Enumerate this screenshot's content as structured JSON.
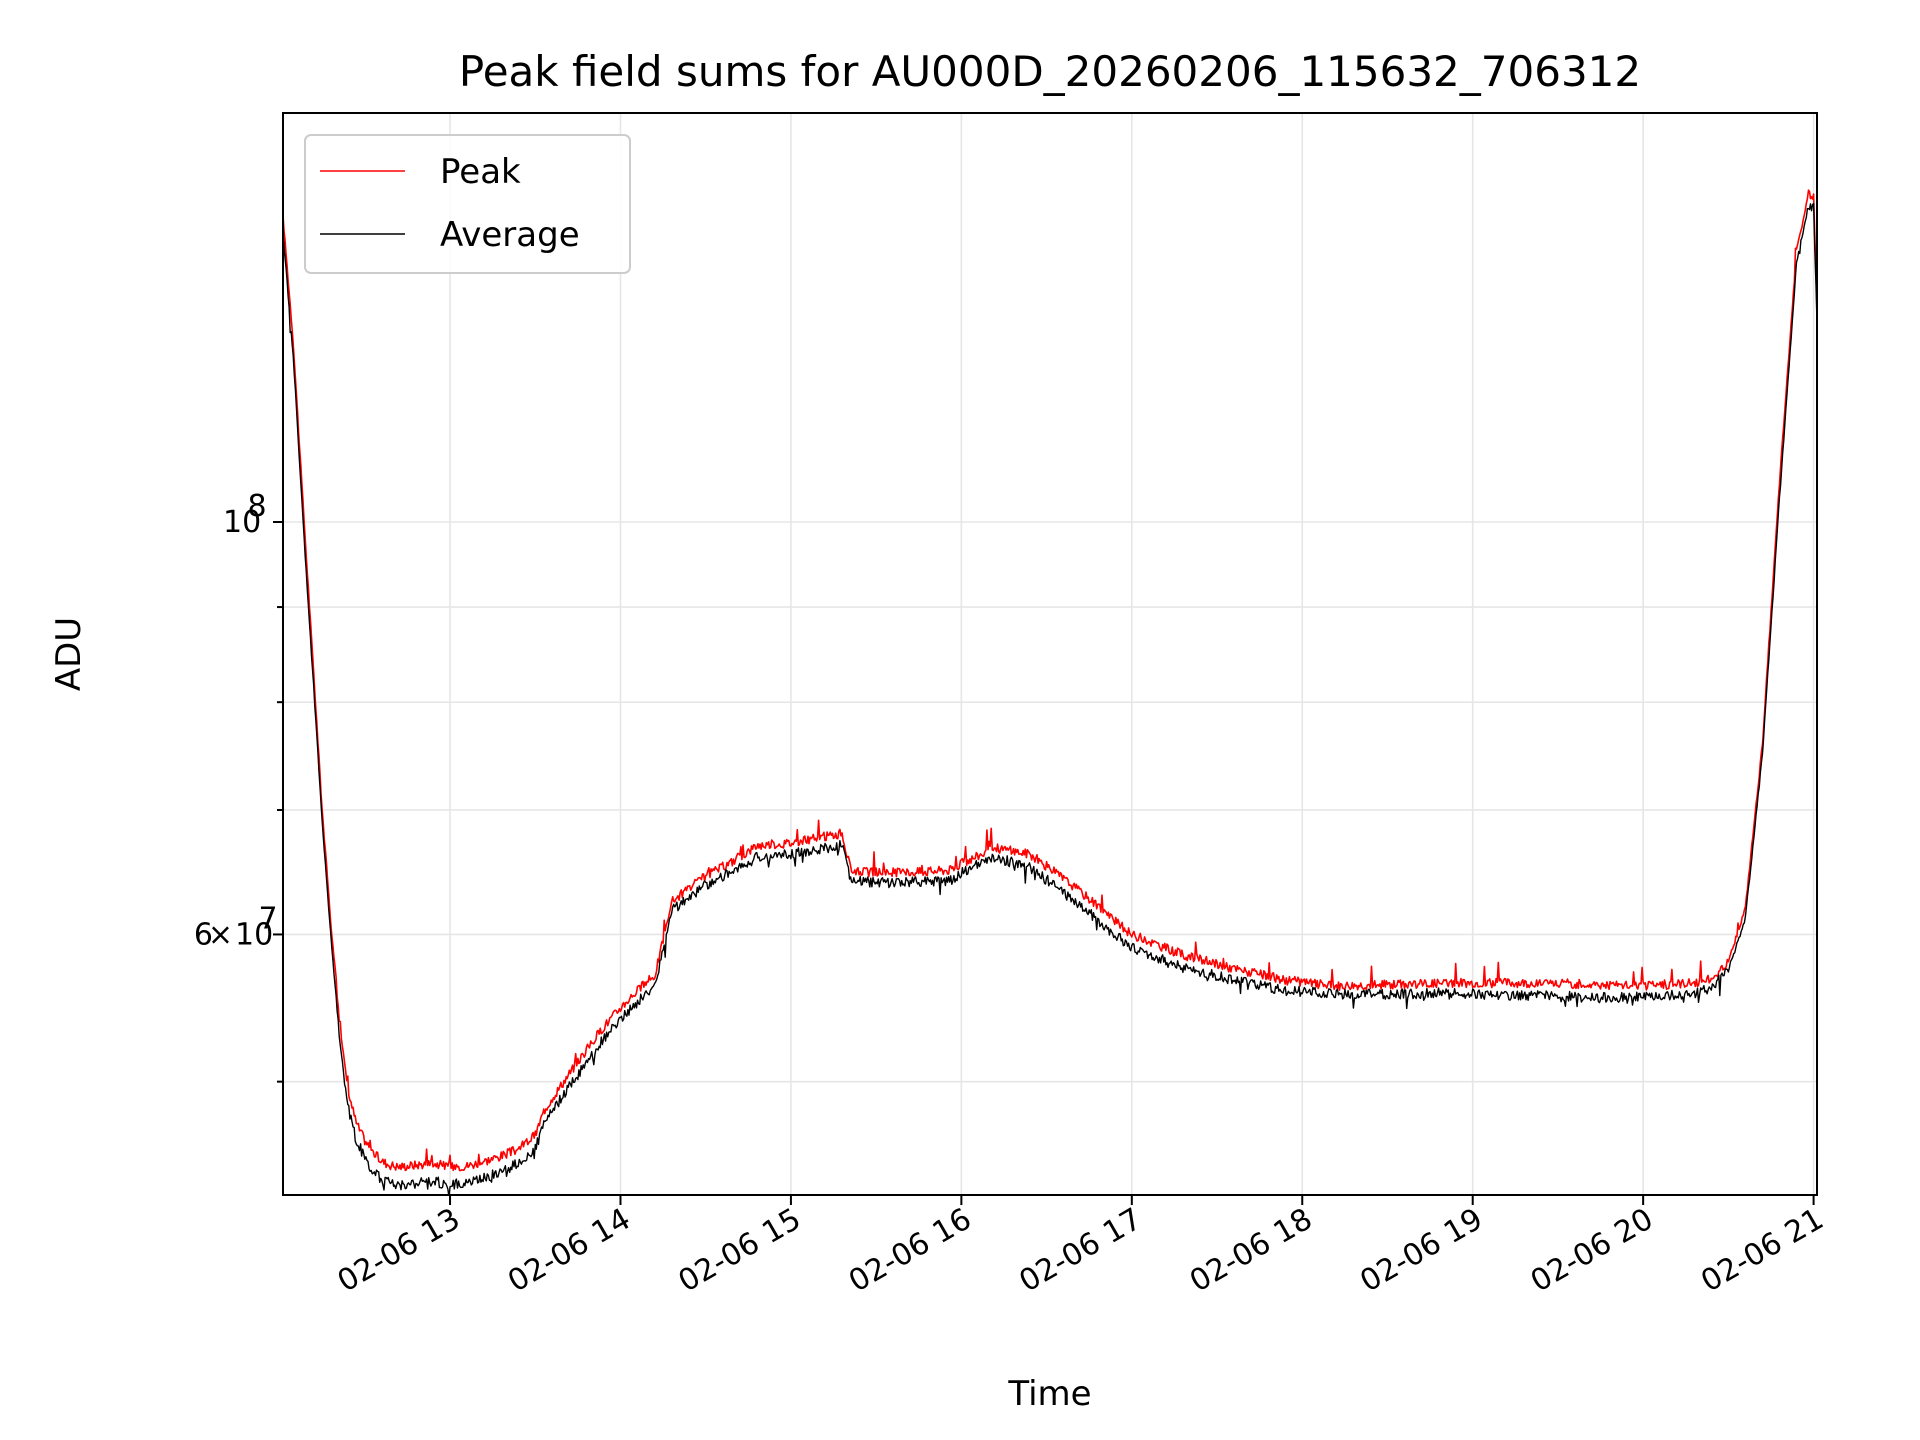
{
  "chart_data": {
    "type": "line",
    "title": "Peak field sums for AU000D_20260206_115632_706312",
    "xlabel": "Time",
    "ylabel": "ADU",
    "xlim": [
      12.02,
      21.02
    ],
    "ylim_log10": [
      7.638,
      8.22
    ],
    "grid": true,
    "legend_position": "upper-left",
    "x_ticks": [
      {
        "value": 13,
        "label": "02-06 13"
      },
      {
        "value": 14,
        "label": "02-06 14"
      },
      {
        "value": 15,
        "label": "02-06 15"
      },
      {
        "value": 16,
        "label": "02-06 16"
      },
      {
        "value": 17,
        "label": "02-06 17"
      },
      {
        "value": 18,
        "label": "02-06 18"
      },
      {
        "value": 19,
        "label": "02-06 19"
      },
      {
        "value": 20,
        "label": "02-06 20"
      },
      {
        "value": 21,
        "label": "02-06 21"
      }
    ],
    "y_major_ticks": [
      {
        "value": 100000000,
        "mantissa": "",
        "exponent": "8"
      },
      {
        "value": 60000000,
        "mantissa": "6",
        "exponent": "7"
      }
    ],
    "y_minor_ticks": [
      50000000,
      70000000,
      80000000,
      90000000
    ],
    "colors": {
      "peak": "#ff0000",
      "average": "#000000"
    },
    "series": [
      {
        "name": "Peak",
        "color": "#ff0000",
        "x": [
          12.02,
          12.08,
          12.15,
          12.2,
          12.25,
          12.3,
          12.35,
          12.4,
          12.45,
          12.5,
          12.55,
          12.6,
          12.65,
          12.7,
          12.8,
          12.9,
          13.0,
          13.1,
          13.2,
          13.3,
          13.4,
          13.5,
          13.55,
          13.6,
          13.7,
          13.8,
          13.9,
          14.0,
          14.1,
          14.2,
          14.25,
          14.3,
          14.5,
          14.7,
          14.8,
          15.0,
          15.3,
          15.35,
          15.45,
          15.7,
          15.95,
          16.0,
          16.2,
          16.4,
          16.6,
          16.8,
          16.9,
          17.0,
          17.3,
          17.6,
          17.9,
          18.2,
          18.5,
          18.8,
          19.1,
          19.4,
          19.7,
          20.0,
          20.3,
          20.4,
          20.5,
          20.6,
          20.7,
          20.8,
          20.9,
          20.97,
          21.0,
          21.02
        ],
        "y": [
          146000000,
          125000000,
          98000000,
          83000000,
          70000000,
          61000000,
          54000000,
          49500000,
          47500000,
          46500000,
          45800000,
          45300000,
          45100000,
          45000000,
          45100000,
          45200000,
          45000000,
          45050000,
          45300000,
          45600000,
          46000000,
          46800000,
          48200000,
          49000000,
          50500000,
          52000000,
          53500000,
          54800000,
          56000000,
          57000000,
          59500000,
          62500000,
          64500000,
          66000000,
          67000000,
          67200000,
          68000000,
          65000000,
          64800000,
          64800000,
          65000000,
          65500000,
          66800000,
          66300000,
          64300000,
          62200000,
          61000000,
          60000000,
          58500000,
          57500000,
          56700000,
          56300000,
          56400000,
          56500000,
          56500000,
          56500000,
          56400000,
          56300000,
          56500000,
          56800000,
          58000000,
          62000000,
          76000000,
          105000000,
          140000000,
          150000000,
          150000000,
          130000000
        ]
      },
      {
        "name": "Average",
        "color": "#000000",
        "x": [
          12.02,
          12.08,
          12.15,
          12.2,
          12.25,
          12.3,
          12.35,
          12.4,
          12.45,
          12.5,
          12.55,
          12.6,
          12.65,
          12.7,
          12.8,
          12.9,
          13.0,
          13.1,
          13.2,
          13.3,
          13.4,
          13.5,
          13.55,
          13.6,
          13.7,
          13.8,
          13.9,
          14.0,
          14.1,
          14.2,
          14.25,
          14.3,
          14.5,
          14.7,
          14.8,
          15.0,
          15.3,
          15.35,
          15.45,
          15.7,
          15.95,
          16.0,
          16.2,
          16.4,
          16.6,
          16.8,
          16.9,
          17.0,
          17.3,
          17.6,
          17.9,
          18.2,
          18.5,
          18.8,
          19.1,
          19.4,
          19.7,
          20.0,
          20.3,
          20.4,
          20.5,
          20.6,
          20.7,
          20.8,
          20.9,
          20.97,
          21.0,
          21.02
        ],
        "y": [
          143000000,
          123000000,
          96000000,
          81500000,
          69000000,
          60000000,
          53000000,
          48500000,
          46500000,
          45500000,
          44700000,
          44300000,
          44100000,
          44000000,
          44100000,
          44200000,
          44000000,
          44100000,
          44400000,
          44700000,
          45200000,
          46000000,
          47400000,
          48200000,
          49700000,
          51200000,
          52700000,
          54000000,
          55200000,
          56300000,
          58800000,
          61800000,
          63800000,
          65200000,
          66000000,
          66300000,
          67000000,
          64200000,
          64000000,
          64000000,
          64200000,
          64800000,
          66000000,
          65200000,
          63200000,
          61100000,
          60000000,
          59000000,
          57600000,
          56700000,
          56000000,
          55700000,
          55700000,
          55800000,
          55700000,
          55600000,
          55500000,
          55500000,
          55800000,
          56200000,
          57400000,
          61200000,
          75000000,
          103000000,
          138000000,
          148000000,
          148000000,
          128000000
        ]
      }
    ]
  }
}
